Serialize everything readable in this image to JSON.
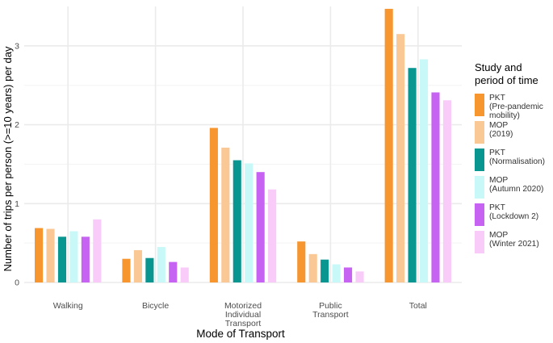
{
  "chart_data": {
    "type": "bar",
    "xlabel": "Mode of Transport",
    "ylabel": "Number of trips per person (>=10 years) per day",
    "ylim": [
      0,
      3.5
    ],
    "yticks": [
      0,
      1,
      2,
      3
    ],
    "grid": true,
    "legend_position": "right",
    "legend_title": "Study and period of time",
    "categories": [
      "Walking",
      "Bicycle",
      "Motorized Individual Transport",
      "Public Transport",
      "Total"
    ],
    "category_labels": [
      [
        "Walking"
      ],
      [
        "Bicycle"
      ],
      [
        "Motorized",
        "Individual",
        "Transport"
      ],
      [
        "Public",
        "Transport"
      ],
      [
        "Total"
      ]
    ],
    "series": [
      {
        "name": "PKT (Pre-pandemic mobility)",
        "label_lines": "PKT\n(Pre-pandemic\nmobility)",
        "color": "#F7952F",
        "values": [
          0.69,
          0.3,
          1.96,
          0.52,
          3.47
        ]
      },
      {
        "name": "MOP (2019)",
        "label_lines": "MOP\n(2019)",
        "color": "#FAC895",
        "values": [
          0.68,
          0.41,
          1.71,
          0.36,
          3.15
        ]
      },
      {
        "name": "PKT (Normalisation)",
        "label_lines": "PKT\n(Normalisation)",
        "color": "#0A9690",
        "values": [
          0.58,
          0.31,
          1.55,
          0.29,
          2.72
        ]
      },
      {
        "name": "MOP (Autumn 2020)",
        "label_lines": "MOP\n(Autumn 2020)",
        "color": "#C8F9F8",
        "values": [
          0.65,
          0.45,
          1.51,
          0.23,
          2.83
        ]
      },
      {
        "name": "PKT (Lockdown 2)",
        "label_lines": "PKT\n(Lockdown 2)",
        "color": "#C663F2",
        "values": [
          0.58,
          0.26,
          1.4,
          0.19,
          2.41
        ]
      },
      {
        "name": "MOP (Winter 2021)",
        "label_lines": "MOP\n(Winter 2021)",
        "color": "#F9CBF8",
        "values": [
          0.8,
          0.19,
          1.18,
          0.14,
          2.31
        ]
      }
    ]
  }
}
